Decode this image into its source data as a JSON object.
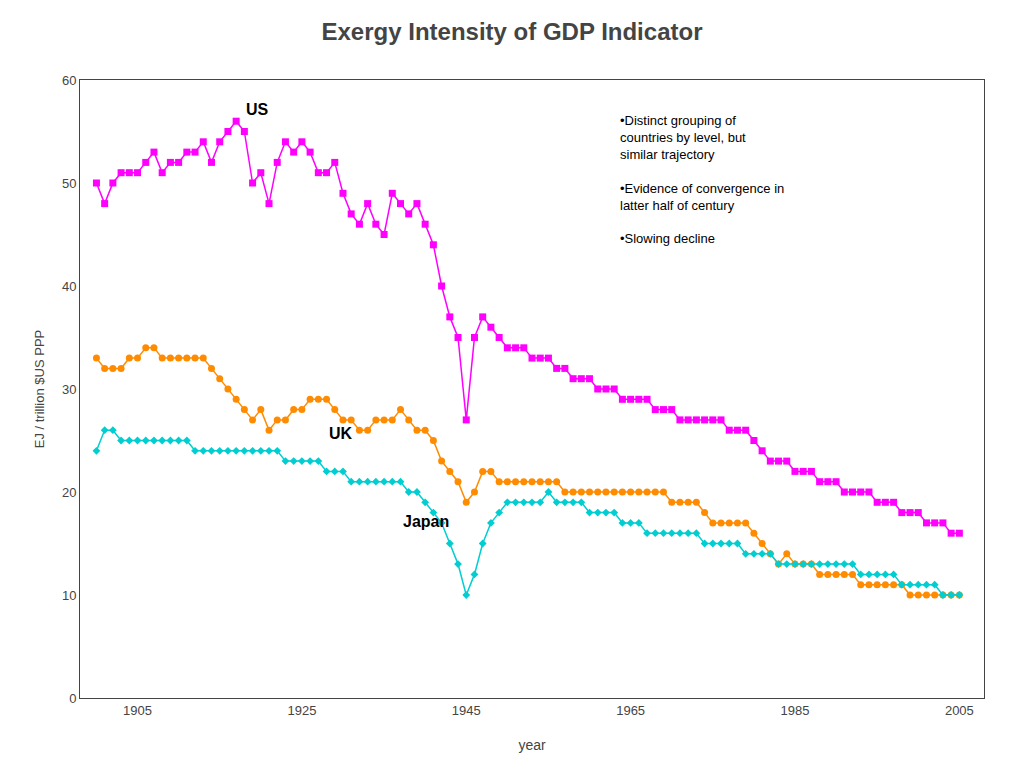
{
  "chart_data": {
    "type": "line",
    "title": "Exergy Intensity of GDP Indicator",
    "x_label": "year",
    "y_label": "EJ / trillion $US PPP",
    "xlim": [
      1898,
      2008
    ],
    "ylim": [
      0,
      60
    ],
    "xticks": [
      1905,
      1925,
      1945,
      1965,
      1985,
      2005
    ],
    "yticks": [
      0,
      10,
      20,
      30,
      40,
      50,
      60
    ],
    "grid": false,
    "annotation": "•Distinct grouping of\ncountries by level, but\nsimilar trajectory\n\n•Evidence of convergence in\nlatter half of century\n\n•Slowing decline",
    "x": [
      1900,
      1901,
      1902,
      1903,
      1904,
      1905,
      1906,
      1907,
      1908,
      1909,
      1910,
      1911,
      1912,
      1913,
      1914,
      1915,
      1916,
      1917,
      1918,
      1919,
      1920,
      1921,
      1922,
      1923,
      1924,
      1925,
      1926,
      1927,
      1928,
      1929,
      1930,
      1931,
      1932,
      1933,
      1934,
      1935,
      1936,
      1937,
      1938,
      1939,
      1940,
      1941,
      1942,
      1943,
      1944,
      1945,
      1946,
      1947,
      1948,
      1949,
      1950,
      1951,
      1952,
      1953,
      1954,
      1955,
      1956,
      1957,
      1958,
      1959,
      1960,
      1961,
      1962,
      1963,
      1964,
      1965,
      1966,
      1967,
      1968,
      1969,
      1970,
      1971,
      1972,
      1973,
      1974,
      1975,
      1976,
      1977,
      1978,
      1979,
      1980,
      1981,
      1982,
      1983,
      1984,
      1985,
      1986,
      1987,
      1988,
      1989,
      1990,
      1991,
      1992,
      1993,
      1994,
      1995,
      1996,
      1997,
      1998,
      1999,
      2000,
      2001,
      2002,
      2003,
      2004,
      2005
    ],
    "series": [
      {
        "name": "US",
        "color": "#ff00ff",
        "marker": "square",
        "values": [
          50,
          48,
          50,
          51,
          51,
          51,
          52,
          53,
          51,
          52,
          52,
          53,
          53,
          54,
          52,
          54,
          55,
          56,
          55,
          50,
          51,
          48,
          52,
          54,
          53,
          54,
          53,
          51,
          51,
          52,
          49,
          47,
          46,
          48,
          46,
          45,
          49,
          48,
          47,
          48,
          46,
          44,
          40,
          37,
          35,
          27,
          35,
          37,
          36,
          35,
          34,
          34,
          34,
          33,
          33,
          33,
          32,
          32,
          31,
          31,
          31,
          30,
          30,
          30,
          29,
          29,
          29,
          29,
          28,
          28,
          28,
          27,
          27,
          27,
          27,
          27,
          27,
          26,
          26,
          26,
          25,
          24,
          23,
          23,
          23,
          22,
          22,
          22,
          21,
          21,
          21,
          20,
          20,
          20,
          20,
          19,
          19,
          19,
          18,
          18,
          18,
          17,
          17,
          17,
          16,
          16
        ]
      },
      {
        "name": "UK",
        "color": "#ff8c00",
        "marker": "circle",
        "values": [
          33,
          32,
          32,
          32,
          33,
          33,
          34,
          34,
          33,
          33,
          33,
          33,
          33,
          33,
          32,
          31,
          30,
          29,
          28,
          27,
          28,
          26,
          27,
          27,
          28,
          28,
          29,
          29,
          29,
          28,
          27,
          27,
          26,
          26,
          27,
          27,
          27,
          28,
          27,
          26,
          26,
          25,
          23,
          22,
          21,
          19,
          20,
          22,
          22,
          21,
          21,
          21,
          21,
          21,
          21,
          21,
          21,
          20,
          20,
          20,
          20,
          20,
          20,
          20,
          20,
          20,
          20,
          20,
          20,
          20,
          19,
          19,
          19,
          19,
          18,
          17,
          17,
          17,
          17,
          17,
          16,
          15,
          14,
          13,
          14,
          13,
          13,
          13,
          12,
          12,
          12,
          12,
          12,
          11,
          11,
          11,
          11,
          11,
          11,
          10,
          10,
          10,
          10,
          10,
          10,
          10
        ]
      },
      {
        "name": "Japan",
        "color": "#00ced1",
        "marker": "diamond",
        "values": [
          24,
          26,
          26,
          25,
          25,
          25,
          25,
          25,
          25,
          25,
          25,
          25,
          24,
          24,
          24,
          24,
          24,
          24,
          24,
          24,
          24,
          24,
          24,
          23,
          23,
          23,
          23,
          23,
          22,
          22,
          22,
          21,
          21,
          21,
          21,
          21,
          21,
          21,
          20,
          20,
          19,
          18,
          17,
          15,
          13,
          10,
          12,
          15,
          17,
          18,
          19,
          19,
          19,
          19,
          19,
          20,
          19,
          19,
          19,
          19,
          18,
          18,
          18,
          18,
          17,
          17,
          17,
          16,
          16,
          16,
          16,
          16,
          16,
          16,
          15,
          15,
          15,
          15,
          15,
          14,
          14,
          14,
          14,
          13,
          13,
          13,
          13,
          13,
          13,
          13,
          13,
          13,
          13,
          12,
          12,
          12,
          12,
          12,
          11,
          11,
          11,
          11,
          11,
          10,
          10,
          10
        ]
      }
    ]
  }
}
